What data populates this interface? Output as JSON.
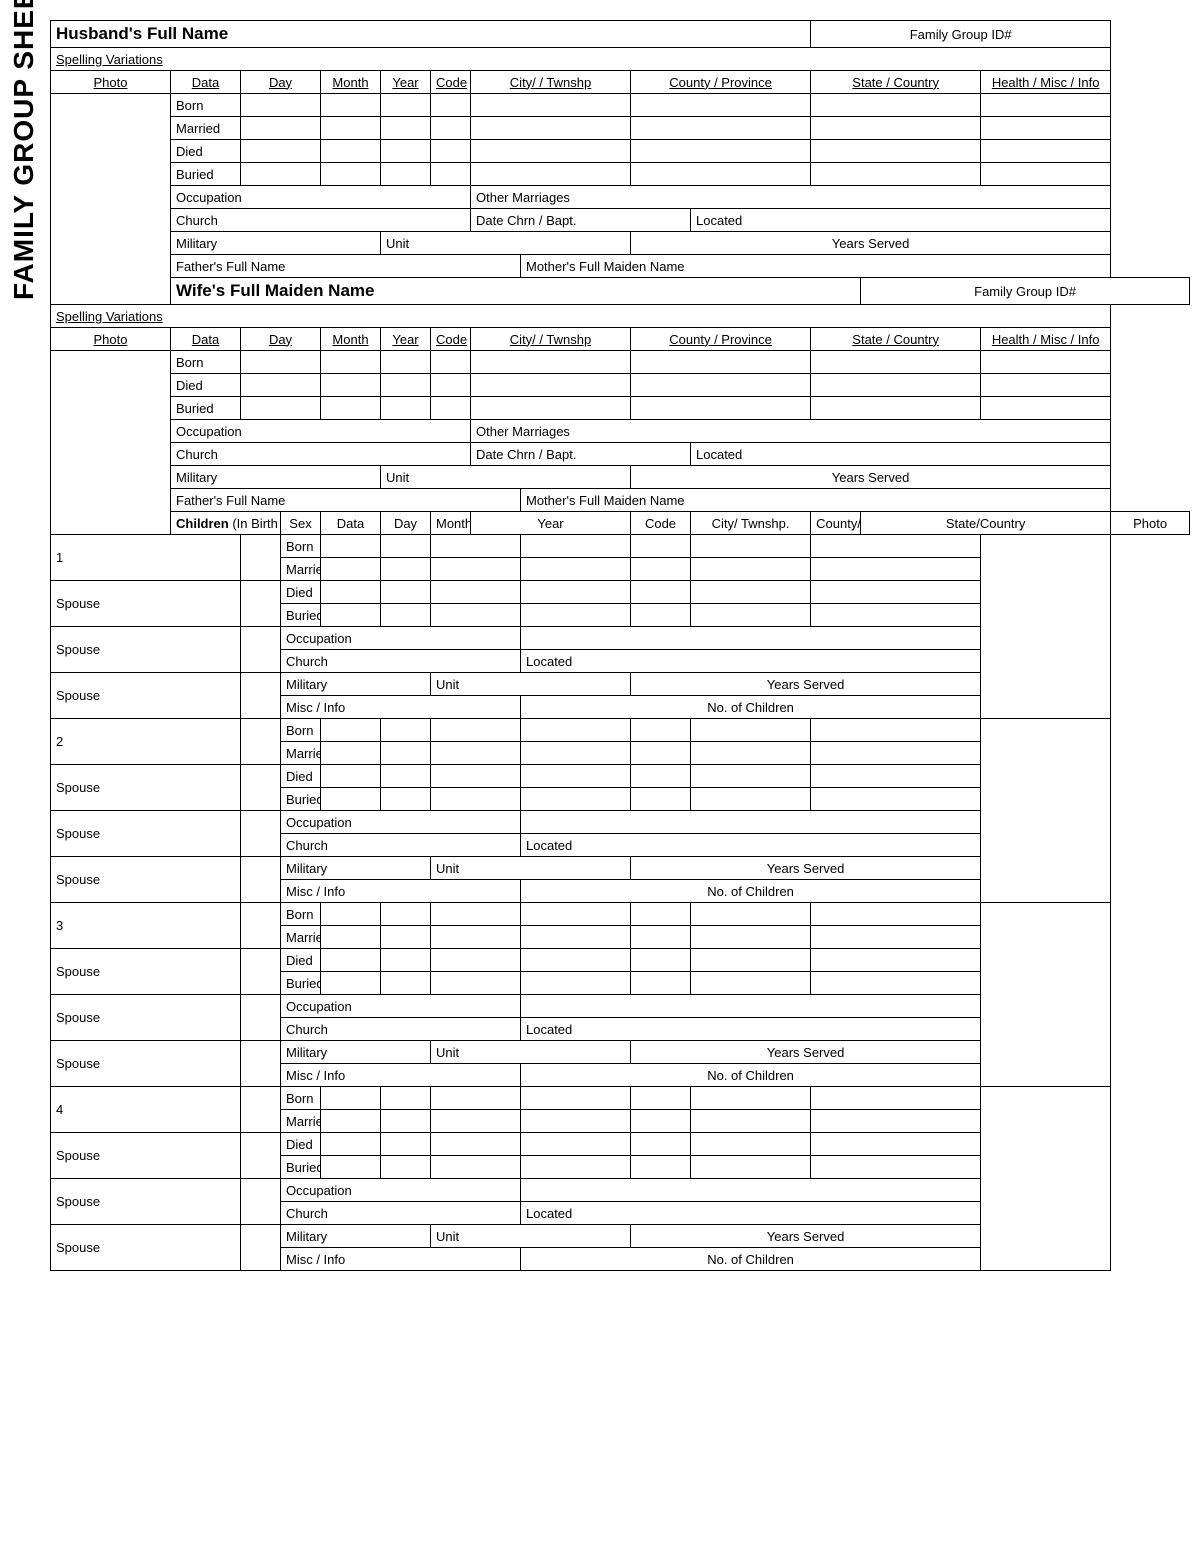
{
  "sideTitle": "FAMILY GROUP SHEET",
  "husband": {
    "title": "Husband's Full Name",
    "groupId": "Family Group ID#",
    "spelling": "Spelling Variations",
    "headers": {
      "photo": "Photo",
      "data": "Data",
      "day": "Day",
      "month": "Month",
      "year": "Year",
      "code": "Code",
      "city": "City/ / Twnshp",
      "county": "County / Province",
      "state": "State / Country",
      "health": "Health / Misc / Info"
    },
    "rows": {
      "born": "Born",
      "married": "Married",
      "died": "Died",
      "buried": "Buried"
    },
    "occupation": "Occupation",
    "otherMarriages": "Other Marriages",
    "church": "Church",
    "dateChrn": "Date Chrn / Bapt.",
    "located": "Located",
    "military": "Military",
    "unit": "Unit",
    "yearsServed": "Years Served",
    "father": "Father's Full Name",
    "mother": "Mother's Full Maiden Name"
  },
  "wife": {
    "title": "Wife's Full Maiden Name",
    "groupId": "Family Group ID#",
    "spelling": "Spelling Variations",
    "headers": {
      "photo": "Photo",
      "data": "Data",
      "day": "Day",
      "month": "Month",
      "year": "Year",
      "code": "Code",
      "city": "City/ / Twnshp",
      "county": "County / Province",
      "state": "State / Country",
      "health": "Health / Misc / Info"
    },
    "rows": {
      "born": "Born",
      "died": "Died",
      "buried": "Buried"
    },
    "occupation": "Occupation",
    "otherMarriages": "Other Marriages",
    "church": "Church",
    "dateChrn": "Date Chrn / Bapt.",
    "located": "Located",
    "military": "Military",
    "unit": "Unit",
    "yearsServed": "Years Served",
    "father": "Father's Full Name",
    "mother": "Mother's Full Maiden Name"
  },
  "children": {
    "title": "Children",
    "sub": " (In Birth Order)",
    "headers": {
      "sex": "Sex",
      "data": "Data",
      "day": "Day",
      "month": "Month",
      "year": "Year",
      "code": "Code",
      "city": "City/ Twnshp.",
      "county": "County/ Prov.",
      "state": "State/Country",
      "photo": "Photo"
    },
    "nums": [
      "1",
      "2",
      "3",
      "4"
    ],
    "spouse": "Spouse",
    "rows": {
      "born": "Born",
      "married": "Married",
      "died": "Died",
      "buried": "Buried"
    },
    "occupation": "Occupation",
    "church": "Church",
    "located": "Located",
    "military": "Military",
    "unit": "Unit",
    "yearsServed": "Years Served",
    "misc": "Misc / Info",
    "noChildren": "No. of Children"
  }
}
